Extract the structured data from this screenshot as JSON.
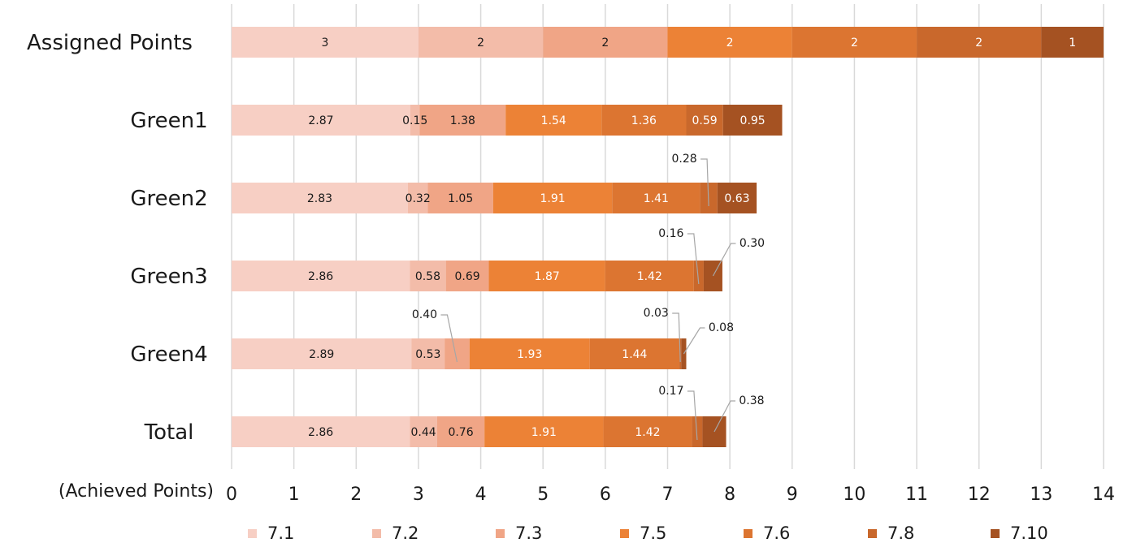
{
  "chart_data": {
    "type": "bar",
    "orientation": "horizontal",
    "stacked": true,
    "title": "",
    "xlabel": "(Achieved Points)",
    "ylabel": "",
    "xlim": [
      0,
      14
    ],
    "x_ticks": [
      "0",
      "1",
      "2",
      "3",
      "4",
      "5",
      "6",
      "7",
      "8",
      "9",
      "10",
      "11",
      "12",
      "13",
      "14"
    ],
    "grid": true,
    "legend_position": "bottom",
    "categories": [
      "Assigned Points",
      "Green1",
      "Green2",
      "Green3",
      "Green4",
      "Total"
    ],
    "series": [
      {
        "name": "7.1",
        "color": "#f7cfc4",
        "values": [
          3,
          2.87,
          2.83,
          2.86,
          2.89,
          2.86
        ],
        "labels": [
          "3",
          "2.87",
          "2.83",
          "2.86",
          "2.89",
          "2.86"
        ]
      },
      {
        "name": "7.2",
        "color": "#f3bca9",
        "values": [
          2,
          0.15,
          0.32,
          0.58,
          0.53,
          0.44
        ],
        "labels": [
          "2",
          "0.15",
          "0.32",
          "0.58",
          "0.53",
          "0.44"
        ]
      },
      {
        "name": "7.3",
        "color": "#f0a586",
        "values": [
          2,
          1.38,
          1.05,
          0.69,
          0.4,
          0.76
        ],
        "labels": [
          "2",
          "1.38",
          "1.05",
          "0.69",
          "0.40",
          "0.76"
        ]
      },
      {
        "name": "7.5",
        "color": "#ec8236",
        "values": [
          2,
          1.54,
          1.91,
          1.87,
          1.93,
          1.91
        ],
        "labels": [
          "2",
          "1.54",
          "1.91",
          "1.87",
          "1.93",
          "1.91"
        ]
      },
      {
        "name": "7.6",
        "color": "#dc7531",
        "values": [
          2,
          1.36,
          1.41,
          1.42,
          1.44,
          1.42
        ],
        "labels": [
          "2",
          "1.36",
          "1.41",
          "1.42",
          "1.44",
          "1.42"
        ]
      },
      {
        "name": "7.8",
        "color": "#c9682c",
        "values": [
          2,
          0.59,
          0.28,
          0.16,
          0.03,
          0.17
        ],
        "labels": [
          "2",
          "0.59",
          "0.28",
          "0.16",
          "0.03",
          "0.17"
        ]
      },
      {
        "name": "7.10",
        "color": "#a55222",
        "values": [
          1,
          0.95,
          0.63,
          0.3,
          0.08,
          0.38
        ],
        "labels": [
          "1",
          "0.95",
          "0.63",
          "0.30",
          "0.08",
          "0.38"
        ]
      }
    ]
  }
}
